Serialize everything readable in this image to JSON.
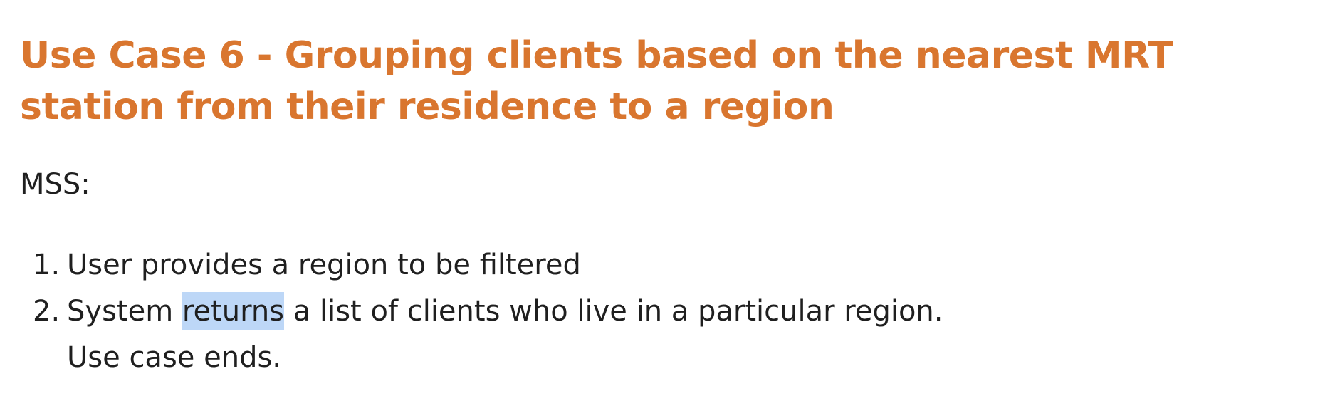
{
  "use_case": {
    "id": "Use Case 6",
    "separator": " - ",
    "title": "Grouping clients based on the nearest MRT station from their residence to a region"
  },
  "mss": {
    "label": "MSS:",
    "steps": [
      {
        "number": "1.",
        "text": "User provides a region to be filtered"
      },
      {
        "number": "2.",
        "text_before": "System ",
        "highlighted": "returns",
        "text_after": " a list of clients who live in a particular region.",
        "continuation": "Use case ends."
      }
    ]
  },
  "colors": {
    "heading": "#d9762f",
    "body_text": "#1f1f1f",
    "selection_highlight": "#bdd7f7"
  }
}
